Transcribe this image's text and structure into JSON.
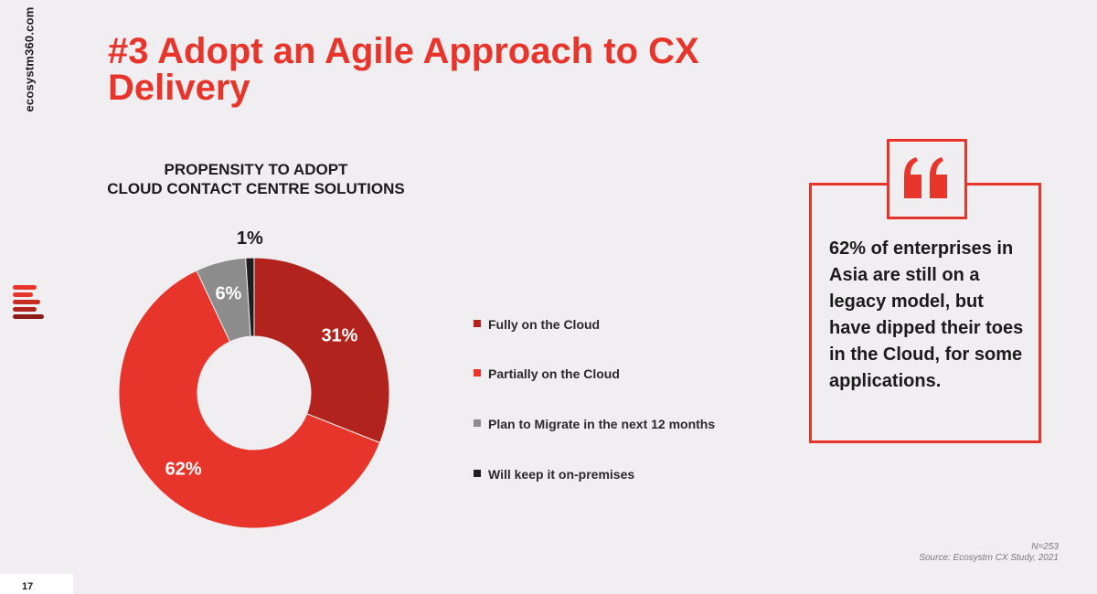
{
  "brand": {
    "site": "ecosystm360.com"
  },
  "slide": {
    "title": "#3 Adopt an Agile Approach to CX Delivery",
    "page_number": "17"
  },
  "chart_data": {
    "type": "pie",
    "variant": "donut",
    "title_lines": [
      "PROPENSITY TO ADOPT",
      "CLOUD CONTACT CENTRE SOLUTIONS"
    ],
    "categories": [
      "Fully on the Cloud",
      "Partially on the Cloud",
      "Plan to Migrate in the next 12 months",
      "Will keep it on-premises"
    ],
    "values": [
      31,
      62,
      6,
      1
    ],
    "data_labels": [
      "31%",
      "62%",
      "6%",
      "1%"
    ],
    "colors": [
      "#b3231d",
      "#e8352c",
      "#8c8c8c",
      "#1e1e1e"
    ],
    "legend_placement": "right"
  },
  "quote": {
    "text": "62% of enterprises in Asia are still on a legacy model, but have dipped their toes in the Cloud, for some applications."
  },
  "footnote": {
    "sample": "N=253",
    "source": "Source: Ecosystm CX Study, 2021"
  },
  "colors": {
    "accent": "#e8352c",
    "dark_red": "#b3231d",
    "background": "#f0eef0"
  }
}
